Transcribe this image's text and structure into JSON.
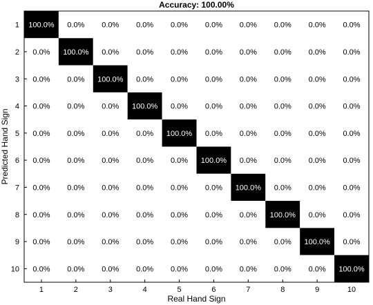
{
  "chart_data": {
    "type": "heatmap",
    "title": "Accuracy: 100.00%",
    "xlabel": "Real Hand Sign",
    "ylabel": "Predicted Hand Sign",
    "x_categories": [
      "1",
      "2",
      "3",
      "4",
      "5",
      "6",
      "7",
      "8",
      "9",
      "10"
    ],
    "y_categories": [
      "1",
      "2",
      "3",
      "4",
      "5",
      "6",
      "7",
      "8",
      "9",
      "10"
    ],
    "cell_labels": [
      [
        "100.0%",
        "0.0%",
        "0.0%",
        "0.0%",
        "0.0%",
        "0.0%",
        "0.0%",
        "0.0%",
        "0.0%",
        "0.0%"
      ],
      [
        "0.0%",
        "100.0%",
        "0.0%",
        "0.0%",
        "0.0%",
        "0.0%",
        "0.0%",
        "0.0%",
        "0.0%",
        "0.0%"
      ],
      [
        "0.0%",
        "0.0%",
        "100.0%",
        "0.0%",
        "0.0%",
        "0.0%",
        "0.0%",
        "0.0%",
        "0.0%",
        "0.0%"
      ],
      [
        "0.0%",
        "0.0%",
        "0.0%",
        "100.0%",
        "0.0%",
        "0.0%",
        "0.0%",
        "0.0%",
        "0.0%",
        "0.0%"
      ],
      [
        "0.0%",
        "0.0%",
        "0.0%",
        "0.0%",
        "100.0%",
        "0.0%",
        "0.0%",
        "0.0%",
        "0.0%",
        "0.0%"
      ],
      [
        "0.0%",
        "0.0%",
        "0.0%",
        "0.0%",
        "0.0%",
        "100.0%",
        "0.0%",
        "0.0%",
        "0.0%",
        "0.0%"
      ],
      [
        "0.0%",
        "0.0%",
        "0.0%",
        "0.0%",
        "0.0%",
        "0.0%",
        "100.0%",
        "0.0%",
        "0.0%",
        "0.0%"
      ],
      [
        "0.0%",
        "0.0%",
        "0.0%",
        "0.0%",
        "0.0%",
        "0.0%",
        "0.0%",
        "100.0%",
        "0.0%",
        "0.0%"
      ],
      [
        "0.0%",
        "0.0%",
        "0.0%",
        "0.0%",
        "0.0%",
        "0.0%",
        "0.0%",
        "0.0%",
        "100.0%",
        "0.0%"
      ],
      [
        "0.0%",
        "0.0%",
        "0.0%",
        "0.0%",
        "0.0%",
        "0.0%",
        "0.0%",
        "0.0%",
        "0.0%",
        "100.0%"
      ]
    ],
    "values": [
      [
        100,
        0,
        0,
        0,
        0,
        0,
        0,
        0,
        0,
        0
      ],
      [
        0,
        100,
        0,
        0,
        0,
        0,
        0,
        0,
        0,
        0
      ],
      [
        0,
        0,
        100,
        0,
        0,
        0,
        0,
        0,
        0,
        0
      ],
      [
        0,
        0,
        0,
        100,
        0,
        0,
        0,
        0,
        0,
        0
      ],
      [
        0,
        0,
        0,
        0,
        100,
        0,
        0,
        0,
        0,
        0
      ],
      [
        0,
        0,
        0,
        0,
        0,
        100,
        0,
        0,
        0,
        0
      ],
      [
        0,
        0,
        0,
        0,
        0,
        0,
        100,
        0,
        0,
        0
      ],
      [
        0,
        0,
        0,
        0,
        0,
        0,
        0,
        100,
        0,
        0
      ],
      [
        0,
        0,
        0,
        0,
        0,
        0,
        0,
        0,
        100,
        0
      ],
      [
        0,
        0,
        0,
        0,
        0,
        0,
        0,
        0,
        0,
        100
      ]
    ],
    "value_range": [
      0,
      100
    ],
    "colors": {
      "high": "#000000",
      "low": "#ffffff",
      "text_on_high": "#ffffff",
      "text_on_low": "#000000"
    },
    "grid": false,
    "legend": "none"
  }
}
